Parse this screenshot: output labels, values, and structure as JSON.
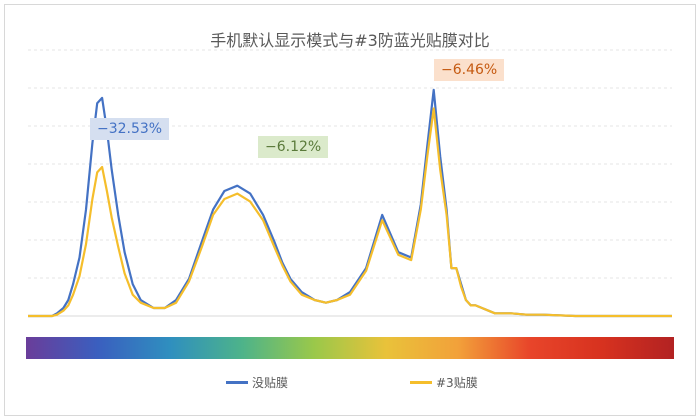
{
  "chart_data": {
    "type": "line",
    "title": "手机默认显示模式与#3防蓝光贴膜对比",
    "xlabel": "",
    "ylabel": "",
    "xlim": [
      380,
      780
    ],
    "ylim": [
      0,
      100
    ],
    "grid": "horizontal",
    "legend_position": "bottom",
    "x": [
      380,
      395,
      398,
      402,
      405,
      408,
      412,
      416,
      420,
      423,
      426,
      429,
      432,
      436,
      440,
      445,
      450,
      458,
      465,
      472,
      480,
      488,
      495,
      502,
      510,
      518,
      526,
      533,
      538,
      543,
      550,
      558,
      565,
      572,
      580,
      590,
      600,
      610,
      618,
      624,
      628,
      632,
      636,
      640,
      643,
      646,
      649,
      652,
      655,
      658,
      662,
      666,
      670,
      680,
      690,
      700,
      720,
      740,
      760,
      780
    ],
    "series": [
      {
        "name": "没贴膜",
        "color": "#4472c4",
        "values": [
          0,
          0,
          1,
          3,
          6,
          12,
          22,
          40,
          65,
          80,
          82,
          70,
          55,
          38,
          24,
          12,
          6,
          3,
          3,
          6,
          14,
          28,
          40,
          47,
          49,
          46,
          38,
          28,
          20,
          14,
          9,
          6,
          5,
          6,
          9,
          18,
          38,
          24,
          22,
          42,
          64,
          85,
          60,
          40,
          18,
          18,
          12,
          6,
          4,
          4,
          3,
          2,
          1,
          1,
          0.5,
          0.5,
          0,
          0,
          0,
          0
        ]
      },
      {
        "name": "#3贴膜",
        "color": "#f5be2b",
        "values": [
          0,
          0,
          0.5,
          2,
          4,
          8,
          15,
          27,
          44,
          54,
          56,
          47,
          37,
          26,
          16,
          8,
          5,
          3,
          3,
          5,
          13,
          26,
          38,
          44,
          46,
          43,
          36,
          26,
          19,
          13,
          8,
          6,
          5,
          6,
          8,
          17,
          36,
          23,
          21,
          40,
          60,
          78,
          55,
          38,
          18,
          18,
          11,
          6,
          4,
          4,
          3,
          2,
          1,
          1,
          0.5,
          0.5,
          0,
          0,
          0,
          0
        ]
      }
    ],
    "annotations": [
      {
        "text": "−32.53%",
        "near_x": 426,
        "color": "#4472c4",
        "background": "#d5dff0"
      },
      {
        "text": "−6.12%",
        "near_x": 500,
        "color": "#5a7a3a",
        "background": "#dbeacb"
      },
      {
        "text": "−6.46%",
        "near_x": 632,
        "color": "#c55a11",
        "background": "#fbe0cc"
      }
    ],
    "spectrum_colors": [
      "#6a3d9a",
      "#3a5fbf",
      "#2f8fbf",
      "#4db38a",
      "#9ac84a",
      "#e9c23a",
      "#f2a13a",
      "#e8452a",
      "#d7321f",
      "#b22222"
    ]
  }
}
